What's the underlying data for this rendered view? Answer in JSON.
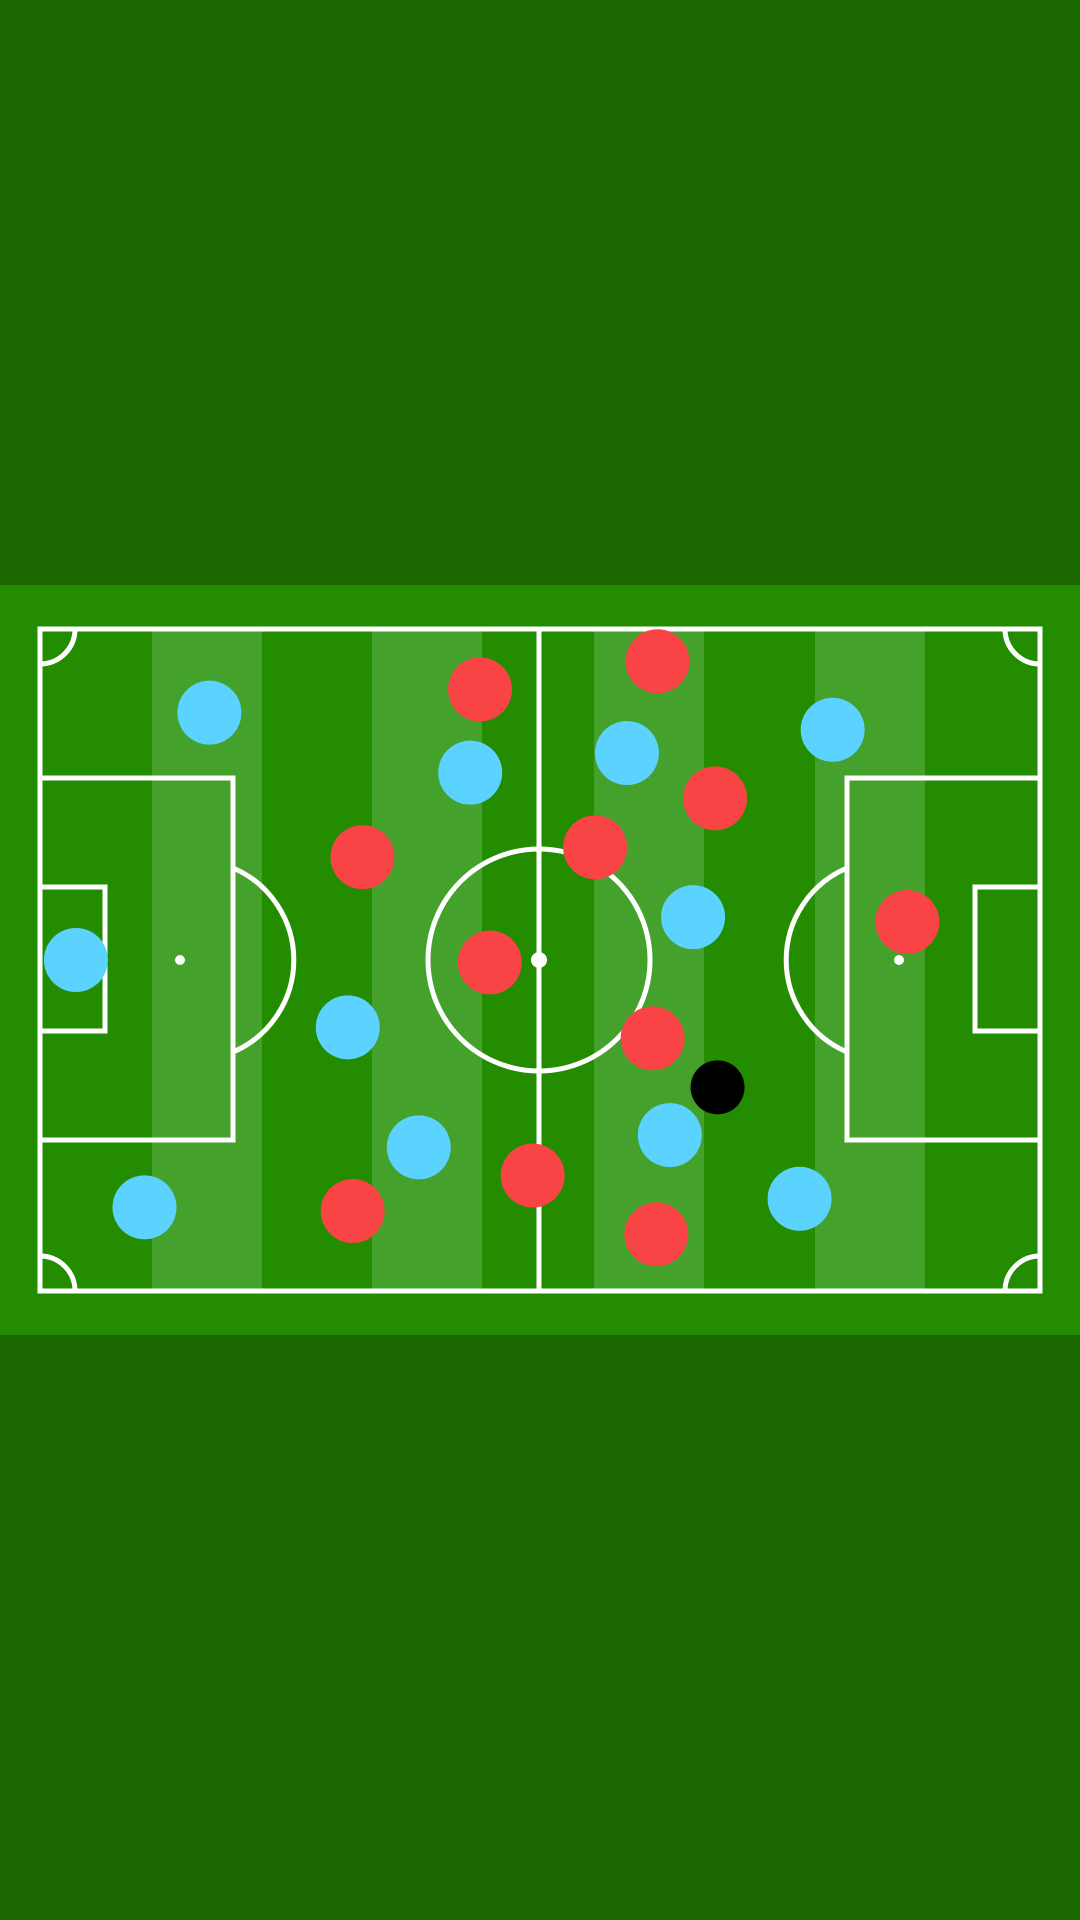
{
  "teams": [
    {
      "color": "#5cd3ff"
    },
    {
      "color": "#f84444"
    }
  ],
  "ball": {
    "color": "#000000"
  }
}
